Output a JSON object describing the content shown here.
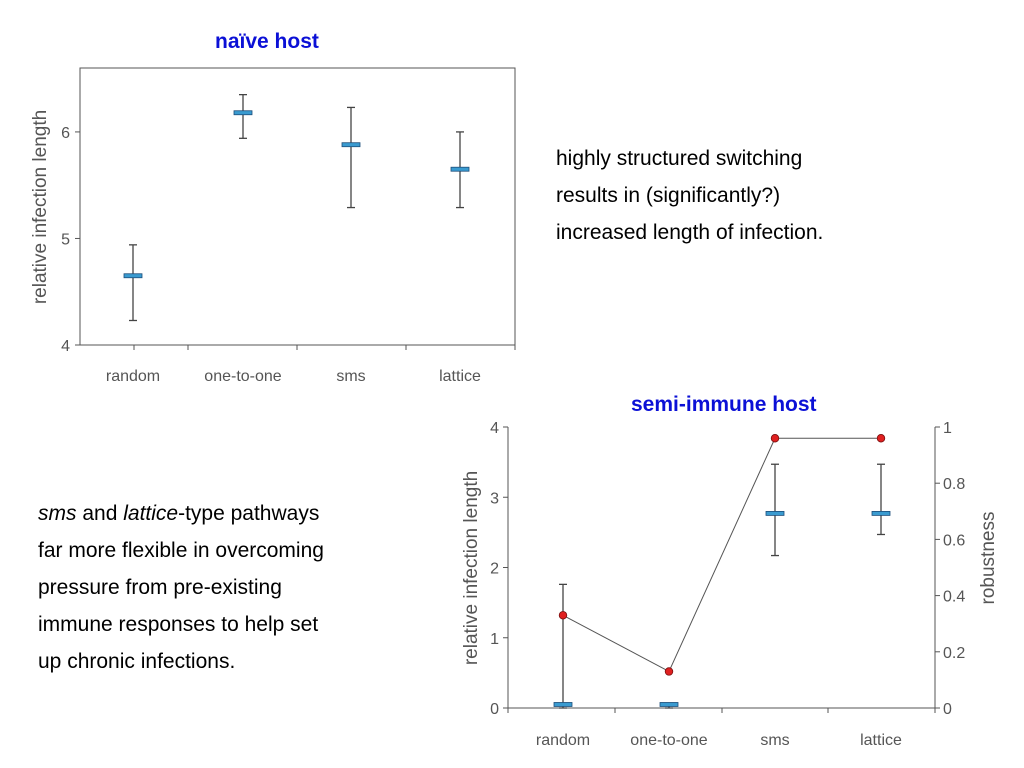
{
  "charts": [
    {
      "title": "naïve host",
      "ylabel": "relative infection length",
      "categories": [
        "random",
        "one-to-one",
        "sms",
        "lattice"
      ],
      "yticks": [
        "4",
        "5",
        "6"
      ]
    },
    {
      "title": "semi-immune host",
      "ylabel": "relative infection length",
      "y2label": "robustness",
      "categories": [
        "random",
        "one-to-one",
        "sms",
        "lattice"
      ],
      "yticks": [
        "0",
        "1",
        "2",
        "3",
        "4"
      ],
      "y2ticks": [
        "0",
        "0.2",
        "0.4",
        "0.6",
        "0.8",
        "1"
      ]
    }
  ],
  "note_top": {
    "lines": [
      "highly structured switching",
      "results in (significantly?)",
      "increased length of infection."
    ]
  },
  "note_bottom": {
    "line1_em1": "sms",
    "line1_mid": " and ",
    "line1_em2": "lattice",
    "line1_tail": "-type pathways",
    "lines": [
      "far more flexible in overcoming",
      "pressure from pre-existing",
      "immune responses to help set",
      "up chronic infections."
    ]
  },
  "colors": {
    "title": "#0b10d6",
    "mean_marker": "#3a9bd0",
    "robustness_point": "#e02020",
    "line": "#555555"
  },
  "chart_data": [
    {
      "type": "errorbar",
      "title": "naïve host",
      "ylabel": "relative infection length",
      "categories": [
        "random",
        "one-to-one",
        "sms",
        "lattice"
      ],
      "mean": [
        4.65,
        6.18,
        5.88,
        5.65
      ],
      "lower": [
        4.23,
        5.94,
        5.29,
        5.29
      ],
      "upper": [
        4.94,
        6.35,
        6.23,
        6.0
      ],
      "ylim": [
        4,
        6.6
      ],
      "grid": false
    },
    {
      "type": "errorbar+line",
      "title": "semi-immune host",
      "ylabel": "relative infection length",
      "y2label": "robustness",
      "categories": [
        "random",
        "one-to-one",
        "sms",
        "lattice"
      ],
      "mean": [
        0.05,
        0.05,
        2.77,
        2.77
      ],
      "lower": [
        0,
        0,
        2.17,
        2.47
      ],
      "upper": [
        1.76,
        0.05,
        3.47,
        3.47
      ],
      "ylim": [
        0,
        4
      ],
      "robustness": [
        0.33,
        0.13,
        0.96,
        0.96
      ],
      "y2lim": [
        0,
        1
      ],
      "grid": false
    }
  ]
}
